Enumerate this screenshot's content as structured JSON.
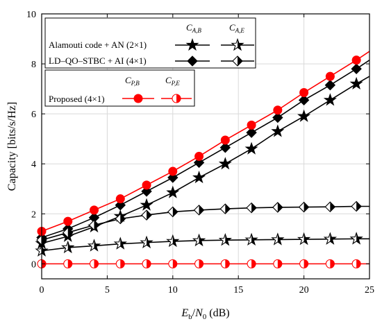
{
  "chart_data": {
    "type": "line",
    "xlabel": "E_b/N_0 (dB)",
    "xlabel_parts": {
      "e": "E",
      "e_sub": "b",
      "slash": "/",
      "n": "N",
      "n_sub": "0",
      "unit": " (dB)"
    },
    "ylabel": "Capacity [bits/s/Hz]",
    "xlim": [
      0,
      25
    ],
    "ylim": [
      -0.6,
      10
    ],
    "xticks": [
      0,
      5,
      10,
      15,
      20,
      25
    ],
    "yticks": [
      0,
      2,
      4,
      6,
      8,
      10
    ],
    "grid": true,
    "legend": {
      "box1": {
        "headers": [
          {
            "main": "C",
            "sub": "A,B"
          },
          {
            "main": "C",
            "sub": "A,E"
          }
        ],
        "rows": [
          "Alamouti code + AN (2×1)",
          "LD–QO–STBC + AI (4×1)"
        ]
      },
      "box2": {
        "headers": [
          {
            "main": "C",
            "sub": "P,B"
          },
          {
            "main": "C",
            "sub": "P,E"
          }
        ],
        "rows": [
          "Proposed (4×1)"
        ]
      }
    },
    "x": [
      0,
      2,
      4,
      6,
      8,
      10,
      12,
      14,
      16,
      18,
      20,
      22,
      24,
      25
    ],
    "series": [
      {
        "name": "Alamouti code + AN (2×1) C_A,B",
        "marker": "star",
        "fill": "full",
        "color": "#000000",
        "values": [
          0.82,
          1.1,
          1.48,
          1.9,
          2.35,
          2.85,
          3.45,
          4.0,
          4.6,
          5.3,
          5.9,
          6.55,
          7.2,
          7.5
        ]
      },
      {
        "name": "Alamouti code + AN (2×1) C_A,E",
        "marker": "star",
        "fill": "half",
        "color": "#000000",
        "values": [
          0.52,
          0.65,
          0.72,
          0.8,
          0.85,
          0.9,
          0.93,
          0.95,
          0.96,
          0.97,
          0.98,
          0.99,
          1.0,
          1.0
        ]
      },
      {
        "name": "LD–QO–STBC + AI (4×1) C_A,B",
        "marker": "diamond",
        "fill": "full",
        "color": "#000000",
        "values": [
          1.05,
          1.4,
          1.85,
          2.35,
          2.9,
          3.45,
          4.05,
          4.65,
          5.25,
          5.85,
          6.55,
          7.15,
          7.8,
          8.15
        ]
      },
      {
        "name": "LD–QO–STBC + AI (4×1) C_A,E",
        "marker": "diamond",
        "fill": "half",
        "color": "#000000",
        "values": [
          0.95,
          1.25,
          1.55,
          1.8,
          1.95,
          2.08,
          2.15,
          2.2,
          2.24,
          2.26,
          2.27,
          2.28,
          2.3,
          2.3
        ]
      },
      {
        "name": "Proposed (4×1) C_P,B",
        "marker": "circle",
        "fill": "full",
        "color": "#ff0000",
        "values": [
          1.3,
          1.7,
          2.15,
          2.6,
          3.15,
          3.7,
          4.3,
          4.95,
          5.55,
          6.15,
          6.85,
          7.5,
          8.15,
          8.5
        ]
      },
      {
        "name": "Proposed (4×1) C_P,E",
        "marker": "circle",
        "fill": "half",
        "color": "#ff0000",
        "values": [
          0,
          0,
          0,
          0,
          0,
          0,
          0,
          0,
          0,
          0,
          0,
          0,
          0,
          0
        ]
      }
    ]
  }
}
